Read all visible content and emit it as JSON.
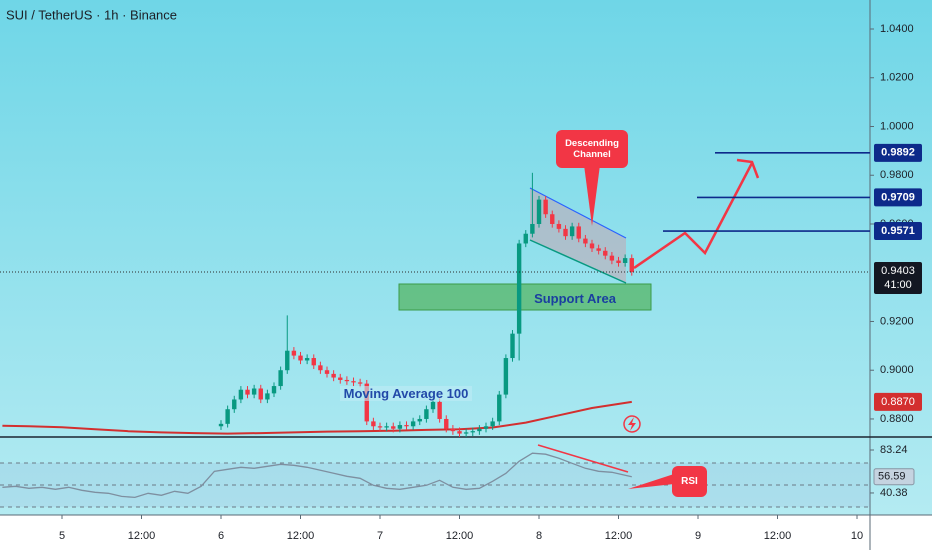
{
  "chart_data": {
    "type": "candlestick",
    "title": "SUI / TetherUS · 1h · Binance",
    "up_color": "#089981",
    "down_color": "#f23645",
    "x": [
      24,
      25,
      26,
      27,
      28,
      29,
      30,
      31,
      32,
      33,
      34,
      35,
      36,
      37,
      38,
      39,
      40,
      41,
      42,
      43,
      44,
      45,
      46,
      47,
      48,
      49,
      50,
      51,
      52,
      53,
      54,
      55,
      56,
      57,
      58,
      59,
      60,
      61,
      62,
      63,
      64,
      65,
      66,
      67,
      68,
      69,
      70,
      71,
      72,
      73,
      74,
      75,
      76,
      77,
      78,
      79,
      80,
      81,
      82,
      83,
      84,
      85,
      86
    ],
    "open": [
      0.877,
      0.878,
      0.884,
      0.888,
      0.892,
      0.89,
      0.8925,
      0.888,
      0.8905,
      0.8935,
      0.9,
      0.908,
      0.906,
      0.904,
      0.905,
      0.902,
      0.9,
      0.8985,
      0.897,
      0.896,
      0.8955,
      0.895,
      0.8945,
      0.879,
      0.877,
      0.8765,
      0.877,
      0.876,
      0.8775,
      0.877,
      0.879,
      0.88,
      0.884,
      0.887,
      0.88,
      0.876,
      0.875,
      0.874,
      0.8745,
      0.875,
      0.876,
      0.877,
      0.879,
      0.89,
      0.905,
      0.915,
      0.952,
      0.956,
      0.96,
      0.97,
      0.964,
      0.96,
      0.958,
      0.955,
      0.959,
      0.954,
      0.952,
      0.95,
      0.949,
      0.947,
      0.945,
      0.944,
      0.946
    ],
    "high": [
      0.8795,
      0.8855,
      0.8895,
      0.8935,
      0.8935,
      0.894,
      0.894,
      0.892,
      0.895,
      0.9015,
      0.9225,
      0.9095,
      0.9075,
      0.9065,
      0.9065,
      0.9035,
      0.9015,
      0.9,
      0.8985,
      0.8975,
      0.897,
      0.8965,
      0.896,
      0.8805,
      0.8785,
      0.8785,
      0.8785,
      0.879,
      0.879,
      0.8805,
      0.8815,
      0.8855,
      0.8885,
      0.8885,
      0.8815,
      0.8775,
      0.8765,
      0.876,
      0.8765,
      0.8775,
      0.8785,
      0.8805,
      0.8915,
      0.9065,
      0.9165,
      0.9535,
      0.9575,
      0.981,
      0.9715,
      0.9715,
      0.9655,
      0.9615,
      0.9595,
      0.9605,
      0.9605,
      0.9555,
      0.9535,
      0.9515,
      0.9505,
      0.9485,
      0.9465,
      0.9475,
      0.9475
    ],
    "low": [
      0.8755,
      0.8765,
      0.8825,
      0.8865,
      0.8885,
      0.8885,
      0.8865,
      0.8865,
      0.889,
      0.892,
      0.8985,
      0.9045,
      0.9025,
      0.9025,
      0.9005,
      0.8985,
      0.897,
      0.8955,
      0.8945,
      0.894,
      0.8935,
      0.893,
      0.8775,
      0.8755,
      0.875,
      0.875,
      0.8745,
      0.8745,
      0.8755,
      0.8755,
      0.8775,
      0.8785,
      0.8825,
      0.8785,
      0.8745,
      0.8735,
      0.8725,
      0.8725,
      0.873,
      0.8735,
      0.8745,
      0.8755,
      0.8775,
      0.8885,
      0.9035,
      0.904,
      0.9505,
      0.9545,
      0.9585,
      0.9625,
      0.9585,
      0.9565,
      0.9535,
      0.9535,
      0.9525,
      0.9505,
      0.9485,
      0.9475,
      0.9455,
      0.9435,
      0.9425,
      0.9425,
      0.9388
    ],
    "close": [
      0.878,
      0.884,
      0.888,
      0.892,
      0.89,
      0.8925,
      0.888,
      0.8905,
      0.8935,
      0.9,
      0.908,
      0.906,
      0.904,
      0.905,
      0.902,
      0.9,
      0.8985,
      0.897,
      0.896,
      0.8955,
      0.895,
      0.8945,
      0.879,
      0.877,
      0.8765,
      0.877,
      0.876,
      0.8775,
      0.877,
      0.879,
      0.88,
      0.884,
      0.887,
      0.88,
      0.876,
      0.875,
      0.874,
      0.8745,
      0.875,
      0.876,
      0.877,
      0.879,
      0.89,
      0.905,
      0.915,
      0.952,
      0.956,
      0.96,
      0.97,
      0.964,
      0.96,
      0.958,
      0.955,
      0.959,
      0.954,
      0.952,
      0.95,
      0.949,
      0.947,
      0.945,
      0.944,
      0.946,
      0.9403
    ],
    "xlim": [
      -9.36,
      121.96
    ],
    "xticks": [
      {
        "value": 0,
        "label": "5"
      },
      {
        "value": 12,
        "label": "12:00"
      },
      {
        "value": 24,
        "label": "6"
      },
      {
        "value": 36,
        "label": "12:00"
      },
      {
        "value": 48,
        "label": "7"
      },
      {
        "value": 60,
        "label": "12:00"
      },
      {
        "value": 72,
        "label": "8"
      },
      {
        "value": 84,
        "label": "12:00"
      },
      {
        "value": 96,
        "label": "9"
      },
      {
        "value": 108,
        "label": "12:00"
      },
      {
        "value": 120,
        "label": "10"
      }
    ],
    "ylim": [
      0.8726,
      1.0519
    ],
    "yticks": [
      {
        "value": 1.04,
        "label": "1.0400"
      },
      {
        "value": 1.02,
        "label": "1.0200"
      },
      {
        "value": 1,
        "label": "1.0000"
      },
      {
        "value": 0.98,
        "label": "0.9800"
      },
      {
        "value": 0.96,
        "label": "0.9600"
      },
      {
        "value": 0.92,
        "label": "0.9200"
      },
      {
        "value": 0.9,
        "label": "0.9000"
      },
      {
        "value": 0.88,
        "label": "0.8800"
      }
    ],
    "moving_average": {
      "color": "#d32f2f",
      "x": [
        -9,
        -5,
        0,
        5,
        10,
        15,
        20,
        25,
        30,
        35,
        40,
        45,
        50,
        55,
        60,
        65,
        70,
        75,
        80,
        86
      ],
      "values": [
        0.8772,
        0.877,
        0.8766,
        0.8758,
        0.875,
        0.8745,
        0.8742,
        0.874,
        0.8742,
        0.8745,
        0.8748,
        0.875,
        0.8752,
        0.8755,
        0.8758,
        0.8765,
        0.8785,
        0.8815,
        0.8845,
        0.887
      ],
      "last": {
        "value": 0.887,
        "label": "0.8870"
      }
    },
    "current_price": 0.9403,
    "countdown": "41:00",
    "price_lines": [
      {
        "value": 0.9892,
        "color": "#0d2a8a"
      },
      {
        "value": 0.9709,
        "color": "#0d2a8a"
      },
      {
        "value": 0.9571,
        "color": "#0d2a8a"
      }
    ],
    "annotations": {
      "channel": "Descending Channel",
      "support": "Support Area",
      "moving_average": "Moving Average 100",
      "rsi": "RSI"
    },
    "rsi": {
      "color": "#7e8fa0",
      "x": [
        -9,
        -7,
        -5,
        -3,
        -1,
        1,
        3,
        5,
        7,
        9,
        11,
        13,
        15,
        17,
        19,
        21,
        23,
        25,
        27,
        29,
        31,
        33,
        35,
        37,
        39,
        41,
        43,
        45,
        47,
        49,
        51,
        53,
        55,
        57,
        59,
        61,
        63,
        65,
        67,
        69,
        71,
        73,
        75,
        77,
        79,
        81,
        83,
        85,
        86
      ],
      "values": [
        46,
        47,
        45,
        46,
        44,
        46,
        43,
        41,
        40,
        37,
        36,
        40,
        38,
        42,
        40,
        47,
        62,
        64,
        66,
        65,
        67,
        69,
        68,
        66,
        63,
        60,
        57,
        55,
        48,
        45,
        44,
        46,
        48,
        53,
        46,
        44,
        45,
        52,
        60,
        72,
        80,
        79,
        75,
        70,
        65,
        62,
        61,
        58,
        56.59
      ],
      "ylim": [
        18.4,
        96.2
      ],
      "yticks": [
        83.24,
        40.38
      ]
    }
  }
}
